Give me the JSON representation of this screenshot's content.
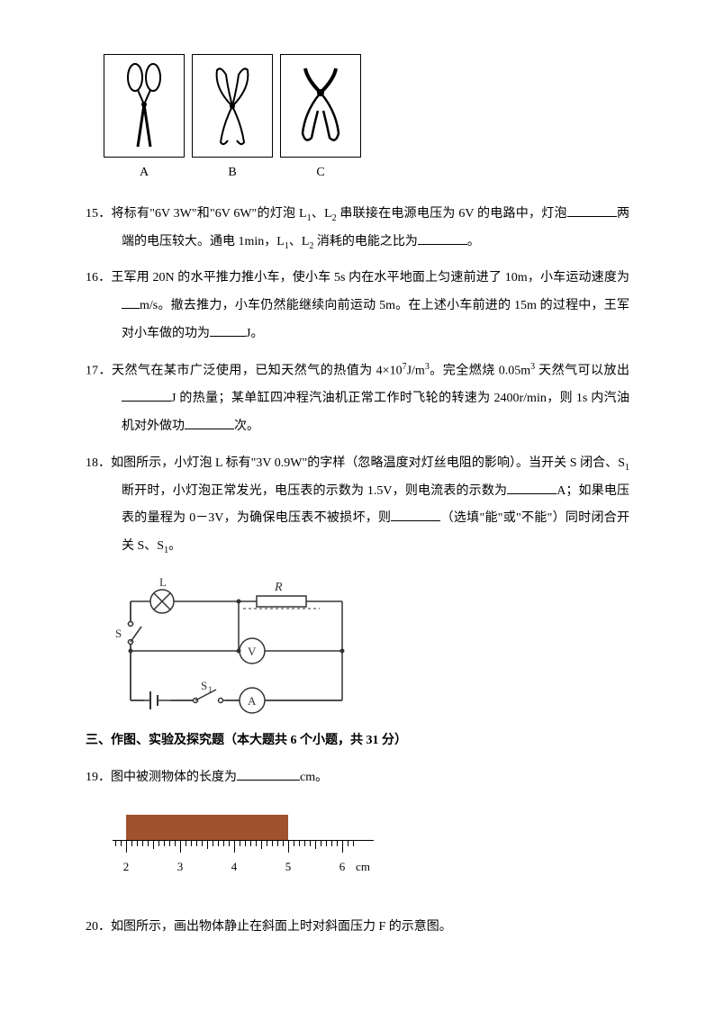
{
  "scissors": {
    "labels": [
      "A",
      "B",
      "C"
    ]
  },
  "q15": {
    "num": "15．",
    "text1": "将标有\"6V 3W\"和\"6V 6W\"的灯泡 L",
    "sub1": "1",
    "text2": "、L",
    "sub2": "2",
    "text3": " 串联接在电源电压为 6V 的电路中，灯泡",
    "text4": "两端的电压较大。通电 1min，L",
    "sub3": "1",
    "text5": "、L",
    "sub4": "2",
    "text6": " 消耗的电能之比为",
    "text7": "。"
  },
  "q16": {
    "num": "16．",
    "text1": "王军用 20N 的水平推力推小车，使小车 5s 内在水平地面上匀速前进了 10m，小车运动速度为",
    "text2": "m/s。撤去推力，小车仍然能继续向前运动 5m。在上述小车前进的 15m 的过程中，王军对小车做的功为",
    "text3": "J。"
  },
  "q17": {
    "num": "17．",
    "text1": "天然气在某市广泛使用，已知天然气的热值为 4×10",
    "sup1": "7",
    "text2": "J/m",
    "sup2": "3",
    "text3": "。完全燃烧 0.05m",
    "sup3": "3",
    "text4": " 天然气可以放出",
    "text5": "J 的热量；某单缸四冲程汽油机正常工作时飞轮的转速为 2400r/min，则 1s 内汽油机对外做功",
    "text6": "次。"
  },
  "q18": {
    "num": "18．",
    "text1": "如图所示，小灯泡 L 标有\"3V 0.9W\"的字样（忽略温度对灯丝电阻的影响）。当开关 S 闭合、S",
    "sub1": "1",
    "text2": "断开时，小灯泡正常发光，电压表的示数为 1.5V，则电流表的示数为",
    "text3": "A；如果电压表的量程为 0－3V，为确保电压表不被损坏，则",
    "text4": "（选填\"能\"或\"不能\"）同时闭合开关 S、S",
    "sub2": "1",
    "text5": "。"
  },
  "section3": {
    "title": "三、作图、实验及探究题（本大题共 6 个小题，共 31 分）"
  },
  "q19": {
    "num": "19．",
    "text1": "图中被测物体的长度为",
    "text2": "cm。"
  },
  "q20": {
    "num": "20．",
    "text1": "如图所示，画出物体静止在斜面上时对斜面压力 F 的示意图。"
  },
  "ruler": {
    "numbers": [
      "2",
      "3",
      "4",
      "5",
      "6"
    ],
    "unit": "cm"
  },
  "circuit": {
    "r_label": "R",
    "s_label": "S",
    "s1_label": "S",
    "s1_sub": "1",
    "l_label": "L",
    "v_label": "V",
    "a_label": "A"
  }
}
